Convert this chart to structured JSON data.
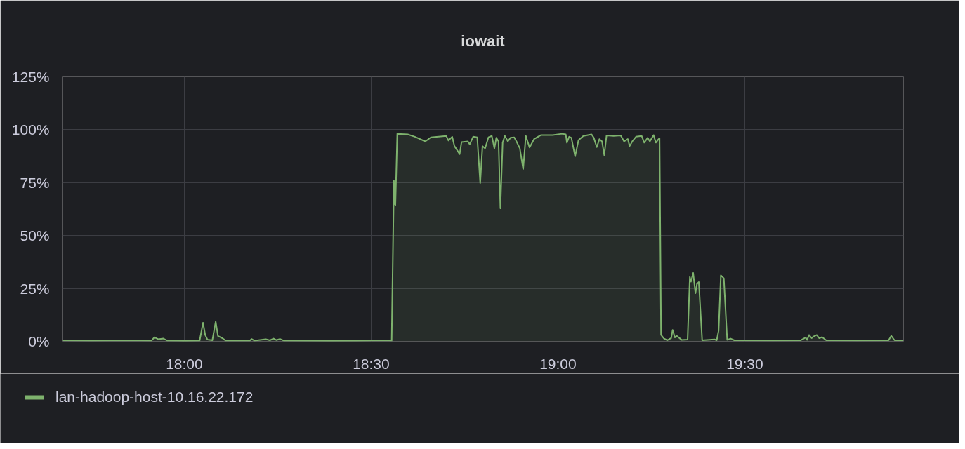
{
  "chart_data": {
    "type": "area",
    "title": "iowait",
    "x": [
      17.673,
      17.752,
      17.846,
      17.912,
      17.92,
      17.93,
      17.944,
      17.955,
      18.0,
      18.041,
      18.05,
      18.056,
      18.062,
      18.075,
      18.084,
      18.09,
      18.102,
      18.111,
      18.175,
      18.18,
      18.188,
      18.218,
      18.229,
      18.239,
      18.246,
      18.256,
      18.267,
      18.391,
      18.485,
      18.538,
      18.555,
      18.561,
      18.563,
      18.565,
      18.57,
      18.598,
      18.617,
      18.645,
      18.66,
      18.701,
      18.707,
      18.717,
      18.723,
      18.737,
      18.742,
      18.759,
      18.764,
      18.773,
      18.784,
      18.792,
      18.798,
      18.805,
      18.814,
      18.823,
      18.83,
      18.835,
      18.841,
      18.846,
      18.852,
      18.858,
      18.866,
      18.873,
      18.883,
      18.889,
      18.898,
      18.907,
      18.914,
      18.924,
      18.936,
      18.955,
      18.986,
      19.011,
      19.021,
      19.024,
      19.03,
      19.036,
      19.046,
      19.055,
      19.068,
      19.09,
      19.096,
      19.104,
      19.111,
      19.118,
      19.124,
      19.13,
      19.149,
      19.168,
      19.177,
      19.187,
      19.192,
      19.199,
      19.209,
      19.224,
      19.231,
      19.24,
      19.246,
      19.256,
      19.262,
      19.268,
      19.272,
      19.276,
      19.284,
      19.293,
      19.303,
      19.307,
      19.313,
      19.318,
      19.331,
      19.347,
      19.353,
      19.356,
      19.362,
      19.368,
      19.372,
      19.377,
      19.386,
      19.419,
      19.425,
      19.43,
      19.436,
      19.444,
      19.453,
      19.462,
      19.472,
      19.575,
      19.65,
      19.663,
      19.667,
      19.672,
      19.679,
      19.684,
      19.693,
      19.699,
      19.707,
      19.718,
      19.801,
      19.885,
      19.892,
      19.901,
      19.925
    ],
    "series": [
      {
        "name": "lan-hadoop-host-10.16.22.172",
        "color": "#7eb26d",
        "values": [
          0.5,
          0.3,
          0.5,
          0.3,
          1.9,
          1.0,
          1.3,
          0.3,
          0.2,
          0.3,
          8.8,
          3.0,
          0.8,
          0.5,
          9.3,
          2.5,
          1.5,
          0.3,
          0.3,
          1.1,
          0.3,
          1.0,
          0.5,
          1.3,
          0.6,
          1.1,
          0.3,
          0.2,
          0.3,
          0.5,
          0.3,
          75.9,
          65.0,
          64.4,
          98.1,
          97.8,
          96.7,
          94.5,
          96.4,
          97.1,
          94.9,
          96.7,
          92.3,
          88.5,
          94.2,
          94.5,
          93.1,
          96.7,
          96.4,
          74.8,
          92.3,
          91.2,
          96.4,
          97.1,
          91.2,
          96.2,
          94.5,
          62.8,
          93.9,
          97.1,
          94.5,
          96.2,
          96.4,
          94.5,
          91.2,
          81.4,
          97.1,
          91.6,
          95.6,
          97.5,
          97.5,
          98.1,
          97.8,
          93.9,
          96.7,
          96.2,
          87.4,
          95.1,
          97.1,
          97.8,
          96.2,
          91.8,
          95.6,
          94.5,
          88.0,
          97.3,
          97.1,
          97.3,
          94.5,
          95.6,
          92.3,
          94.5,
          96.7,
          97.1,
          93.9,
          96.2,
          94.5,
          97.5,
          93.9,
          95.3,
          96.0,
          3.0,
          1.3,
          0.5,
          1.5,
          5.4,
          1.8,
          2.6,
          0.7,
          0.8,
          30.4,
          28.2,
          32.3,
          22.7,
          27.1,
          28.0,
          0.5,
          0.9,
          0.5,
          5.0,
          31.2,
          29.8,
          0.7,
          1.3,
          0.5,
          0.4,
          0.5,
          1.8,
          0.7,
          3.0,
          1.5,
          2.3,
          3.0,
          1.5,
          2.0,
          0.5,
          0.4,
          0.5,
          2.6,
          0.5,
          0.5
        ]
      }
    ],
    "xlim": [
      17.673,
      19.925
    ],
    "xticks": [
      {
        "value": 18,
        "label": "18:00"
      },
      {
        "value": 18.5,
        "label": "18:30"
      },
      {
        "value": 19,
        "label": "19:00"
      },
      {
        "value": 19.5,
        "label": "19:30"
      }
    ],
    "ylim": [
      0,
      125
    ],
    "yticks": [
      {
        "value": 0,
        "label": "0%"
      },
      {
        "value": 25,
        "label": "25%"
      },
      {
        "value": 50,
        "label": "50%"
      },
      {
        "value": 75,
        "label": "75%"
      },
      {
        "value": 100,
        "label": "100%"
      },
      {
        "value": 125,
        "label": "125%"
      }
    ],
    "grid": true,
    "legend": "bottom"
  }
}
